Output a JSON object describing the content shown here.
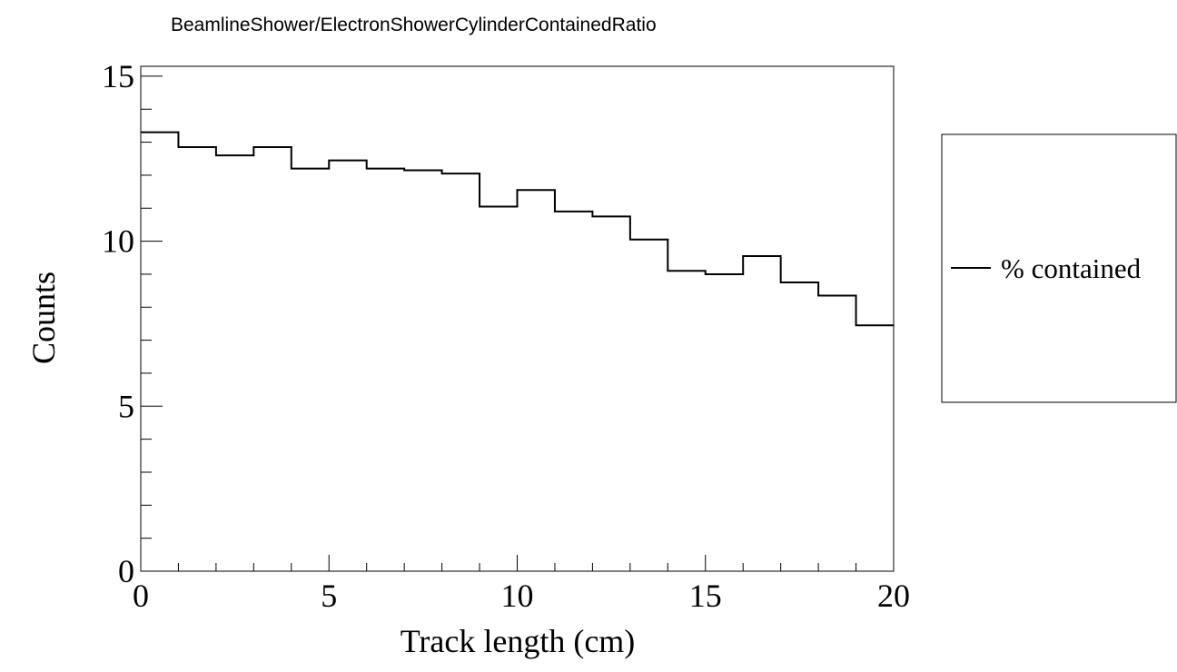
{
  "chart_data": {
    "type": "line",
    "style": "step-histogram",
    "title": "BeamlineShower/ElectronShowerCylinderContainedRatio",
    "xlabel": "Track length (cm)",
    "ylabel": "Counts",
    "xlim": [
      0,
      20
    ],
    "ylim": [
      0,
      15.3
    ],
    "xticks": [
      0,
      5,
      10,
      15,
      20
    ],
    "yticks": [
      0,
      5,
      10,
      15
    ],
    "grid": false,
    "legend_position": "right",
    "bin_edges": [
      0,
      1,
      2,
      3,
      4,
      5,
      6,
      7,
      8,
      9,
      10,
      11,
      12,
      13,
      14,
      15,
      16,
      17,
      18,
      19,
      20
    ],
    "series": [
      {
        "name": "% contained",
        "color": "#000000",
        "values": [
          13.3,
          12.85,
          12.6,
          12.85,
          12.2,
          12.45,
          12.2,
          12.15,
          12.05,
          11.05,
          11.55,
          10.9,
          10.75,
          10.05,
          9.1,
          9.0,
          9.55,
          8.75,
          8.35,
          7.45
        ]
      }
    ]
  }
}
